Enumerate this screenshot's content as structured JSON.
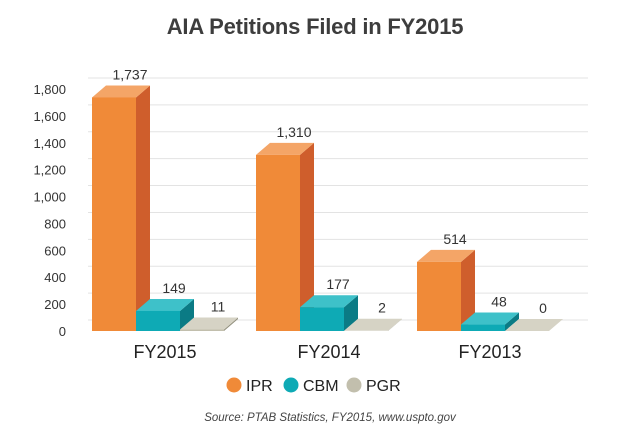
{
  "chart_data": {
    "type": "bar",
    "title": "AIA Petitions Filed in FY2015",
    "categories": [
      "FY2015",
      "FY2014",
      "FY2013"
    ],
    "series": [
      {
        "name": "IPR",
        "values": [
          1737,
          1310,
          514
        ],
        "color": "#f08a38",
        "side_color": "#cf5e2c",
        "top_color": "#f4a567"
      },
      {
        "name": "CBM",
        "values": [
          149,
          177,
          48
        ],
        "color": "#0eaab5",
        "side_color": "#0b7b85",
        "top_color": "#3ec1c9"
      },
      {
        "name": "PGR",
        "values": [
          11,
          2,
          0
        ],
        "color": "#c2bfad",
        "side_color": "#93917f",
        "top_color": "#d6d3c5"
      }
    ],
    "data_labels": [
      [
        "1,737",
        "1,310",
        "514"
      ],
      [
        "149",
        "177",
        "48"
      ],
      [
        "11",
        "2",
        "0"
      ]
    ],
    "y_ticks": [
      "0",
      "200",
      "400",
      "600",
      "800",
      "1,000",
      "1,200",
      "1,400",
      "1,600",
      "1,800"
    ],
    "ylim": [
      0,
      1800
    ],
    "grid": true,
    "legend_position": "bottom-center",
    "source": "Source: PTAB Statistics, FY2015, www.uspto.gov"
  }
}
